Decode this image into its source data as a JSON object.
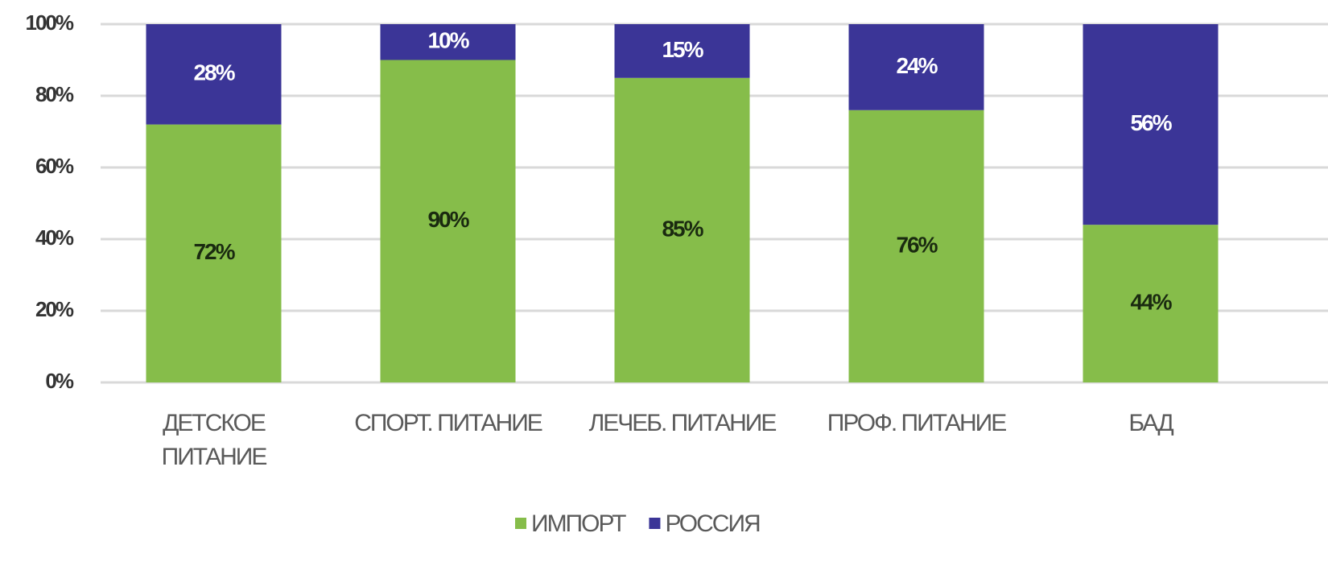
{
  "chart_data": {
    "type": "stacked_bar",
    "categories": [
      "ДЕТСКОЕ\nПИТАНИЕ",
      "СПОРТ. ПИТАНИЕ",
      "ЛЕЧЕБ. ПИТАНИЕ",
      "ПРОФ. ПИТАНИЕ",
      "БАД"
    ],
    "series": [
      {
        "name": "ИМПОРТ",
        "color": "#86bd4a",
        "values": [
          72,
          90,
          85,
          76,
          44
        ],
        "value_labels": [
          "72%",
          "90%",
          "85%",
          "76%",
          "44%"
        ]
      },
      {
        "name": "РОССИЯ",
        "color": "#3b3597",
        "values": [
          28,
          10,
          15,
          24,
          56
        ],
        "value_labels": [
          "28%",
          "10%",
          "15%",
          "24%",
          "56%"
        ]
      }
    ],
    "ylim": [
      0,
      100
    ],
    "yticks": [
      {
        "value": 0,
        "label": "0%"
      },
      {
        "value": 20,
        "label": "20%"
      },
      {
        "value": 40,
        "label": "40%"
      },
      {
        "value": 60,
        "label": "60%"
      },
      {
        "value": 80,
        "label": "80%"
      },
      {
        "value": 100,
        "label": "100%"
      }
    ],
    "grid": true,
    "legend": "bottom"
  }
}
